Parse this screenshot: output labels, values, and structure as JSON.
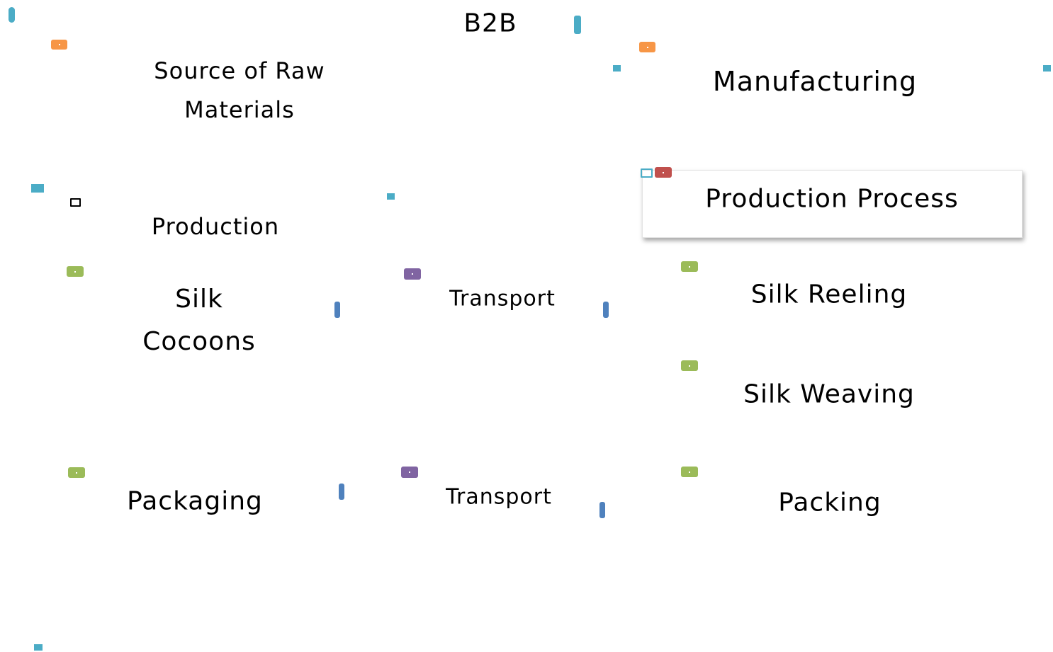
{
  "header": {
    "title": "B2B"
  },
  "nodes": [
    {
      "label": "Source of Raw Materials"
    },
    {
      "label": "Manufacturing"
    },
    {
      "label": "Production Process"
    },
    {
      "label": "Production"
    },
    {
      "label": "Silk Cocoons"
    },
    {
      "label": "Transport"
    },
    {
      "label": "Silk Reeling"
    },
    {
      "label": "Silk Weaving"
    },
    {
      "label": "Packaging"
    },
    {
      "label": "Transport"
    },
    {
      "label": "Packing"
    }
  ]
}
